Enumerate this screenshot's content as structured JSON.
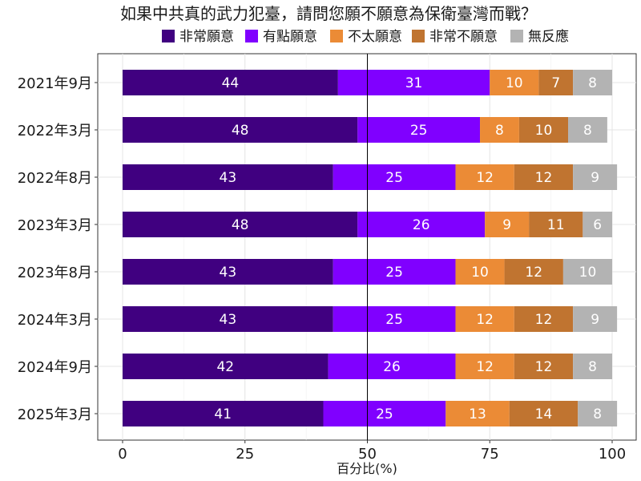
{
  "chart_data": {
    "type": "bar",
    "orientation": "horizontal",
    "stacked": true,
    "title": "如果中共真的武力犯臺，請問您願不願意為保衛臺灣而戰？",
    "xlabel": "百分比(%)",
    "ylabel": "",
    "xlim": [
      0,
      100
    ],
    "xticks": [
      "0",
      "25",
      "50",
      "75",
      "100"
    ],
    "reference_line": 50,
    "grid": true,
    "legend_position": "top",
    "categories": [
      "2021年9月",
      "2022年3月",
      "2022年8月",
      "2023年3月",
      "2023年8月",
      "2024年3月",
      "2024年9月",
      "2025年3月"
    ],
    "series": [
      {
        "name": "非常願意",
        "color": "#400080",
        "values": [
          44,
          48,
          43,
          48,
          43,
          43,
          42,
          41
        ]
      },
      {
        "name": "有點願意",
        "color": "#8000ff",
        "values": [
          31,
          25,
          25,
          26,
          25,
          25,
          26,
          25
        ]
      },
      {
        "name": "不太願意",
        "color": "#eb8b36",
        "values": [
          10,
          8,
          12,
          9,
          10,
          12,
          12,
          13
        ]
      },
      {
        "name": "非常不願意",
        "color": "#c07430",
        "values": [
          7,
          10,
          12,
          11,
          12,
          12,
          12,
          14
        ]
      },
      {
        "name": "無反應",
        "color": "#b3b3b3",
        "values": [
          8,
          8,
          9,
          6,
          10,
          9,
          8,
          8
        ]
      }
    ]
  }
}
